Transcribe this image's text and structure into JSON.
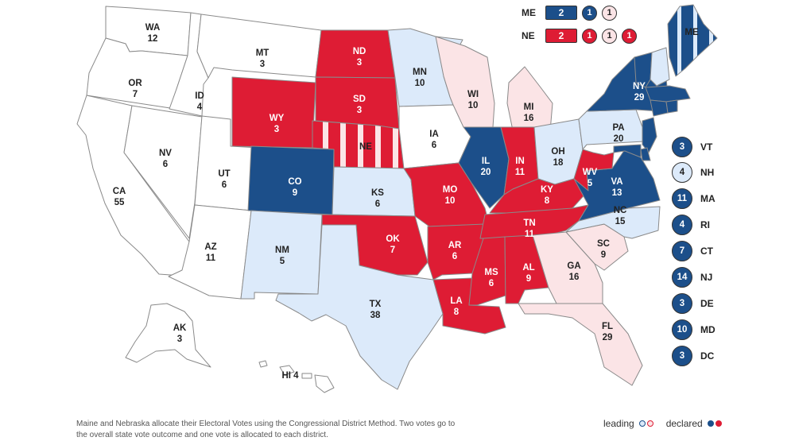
{
  "colors": {
    "safe_dem": "#1c4f8a",
    "lean_dem": "#dceafa",
    "safe_rep": "#de1c34",
    "lean_rep": "#fbe4e6",
    "tossup": "#ffffff",
    "border": "#8a8a8a"
  },
  "states": [
    {
      "abbr": "WA",
      "ev": "12",
      "status": "tossup"
    },
    {
      "abbr": "OR",
      "ev": "7",
      "status": "tossup"
    },
    {
      "abbr": "CA",
      "ev": "55",
      "status": "tossup"
    },
    {
      "abbr": "ID",
      "ev": "4",
      "status": "tossup"
    },
    {
      "abbr": "NV",
      "ev": "6",
      "status": "tossup"
    },
    {
      "abbr": "MT",
      "ev": "3",
      "status": "tossup"
    },
    {
      "abbr": "WY",
      "ev": "3",
      "status": "safe_rep"
    },
    {
      "abbr": "UT",
      "ev": "6",
      "status": "tossup"
    },
    {
      "abbr": "AZ",
      "ev": "11",
      "status": "tossup"
    },
    {
      "abbr": "CO",
      "ev": "9",
      "status": "safe_dem"
    },
    {
      "abbr": "NM",
      "ev": "5",
      "status": "lean_dem"
    },
    {
      "abbr": "ND",
      "ev": "3",
      "status": "safe_rep"
    },
    {
      "abbr": "SD",
      "ev": "3",
      "status": "safe_rep"
    },
    {
      "abbr": "NE",
      "ev": "",
      "status": "split"
    },
    {
      "abbr": "KS",
      "ev": "6",
      "status": "lean_dem"
    },
    {
      "abbr": "OK",
      "ev": "7",
      "status": "safe_rep"
    },
    {
      "abbr": "TX",
      "ev": "38",
      "status": "lean_dem"
    },
    {
      "abbr": "MN",
      "ev": "10",
      "status": "lean_dem"
    },
    {
      "abbr": "IA",
      "ev": "6",
      "status": "tossup"
    },
    {
      "abbr": "MO",
      "ev": "10",
      "status": "safe_rep"
    },
    {
      "abbr": "AR",
      "ev": "6",
      "status": "safe_rep"
    },
    {
      "abbr": "LA",
      "ev": "8",
      "status": "safe_rep"
    },
    {
      "abbr": "WI",
      "ev": "10",
      "status": "lean_rep"
    },
    {
      "abbr": "IL",
      "ev": "20",
      "status": "safe_dem"
    },
    {
      "abbr": "MI",
      "ev": "16",
      "status": "lean_rep"
    },
    {
      "abbr": "IN",
      "ev": "11",
      "status": "safe_rep"
    },
    {
      "abbr": "OH",
      "ev": "18",
      "status": "lean_dem"
    },
    {
      "abbr": "KY",
      "ev": "8",
      "status": "safe_rep"
    },
    {
      "abbr": "TN",
      "ev": "11",
      "status": "safe_rep"
    },
    {
      "abbr": "MS",
      "ev": "6",
      "status": "safe_rep"
    },
    {
      "abbr": "AL",
      "ev": "9",
      "status": "safe_rep"
    },
    {
      "abbr": "GA",
      "ev": "16",
      "status": "lean_rep"
    },
    {
      "abbr": "FL",
      "ev": "29",
      "status": "lean_rep"
    },
    {
      "abbr": "SC",
      "ev": "9",
      "status": "lean_rep"
    },
    {
      "abbr": "NC",
      "ev": "15",
      "status": "lean_dem"
    },
    {
      "abbr": "VA",
      "ev": "13",
      "status": "safe_dem"
    },
    {
      "abbr": "WV",
      "ev": "5",
      "status": "safe_rep"
    },
    {
      "abbr": "PA",
      "ev": "20",
      "status": "lean_dem"
    },
    {
      "abbr": "NY",
      "ev": "29",
      "status": "safe_dem"
    },
    {
      "abbr": "ME",
      "ev": "",
      "status": "split"
    },
    {
      "abbr": "AK",
      "ev": "3",
      "status": "tossup"
    },
    {
      "abbr": "HI",
      "ev": "4",
      "status": "tossup"
    }
  ],
  "split_states": [
    {
      "abbr": "ME",
      "total": "2",
      "total_status": "safe_dem",
      "districts": [
        {
          "ev": "1",
          "status": "safe_dem"
        },
        {
          "ev": "1",
          "status": "lean_rep"
        }
      ]
    },
    {
      "abbr": "NE",
      "total": "2",
      "total_status": "safe_rep",
      "districts": [
        {
          "ev": "1",
          "status": "safe_rep"
        },
        {
          "ev": "1",
          "status": "lean_rep"
        },
        {
          "ev": "1",
          "status": "safe_rep"
        }
      ]
    }
  ],
  "small_states": [
    {
      "abbr": "VT",
      "ev": "3",
      "status": "safe_dem"
    },
    {
      "abbr": "NH",
      "ev": "4",
      "status": "lean_dem"
    },
    {
      "abbr": "MA",
      "ev": "11",
      "status": "safe_dem"
    },
    {
      "abbr": "RI",
      "ev": "4",
      "status": "safe_dem"
    },
    {
      "abbr": "CT",
      "ev": "7",
      "status": "safe_dem"
    },
    {
      "abbr": "NJ",
      "ev": "14",
      "status": "safe_dem"
    },
    {
      "abbr": "DE",
      "ev": "3",
      "status": "safe_dem"
    },
    {
      "abbr": "MD",
      "ev": "10",
      "status": "safe_dem"
    },
    {
      "abbr": "DC",
      "ev": "3",
      "status": "safe_dem"
    }
  ],
  "footnote": "Maine and Nebraska allocate their Electoral Votes using the Congressional District Method. Two votes go to the overall state vote outcome and one vote is allocated to each district.",
  "legend": {
    "leading": "leading",
    "declared": "declared"
  }
}
